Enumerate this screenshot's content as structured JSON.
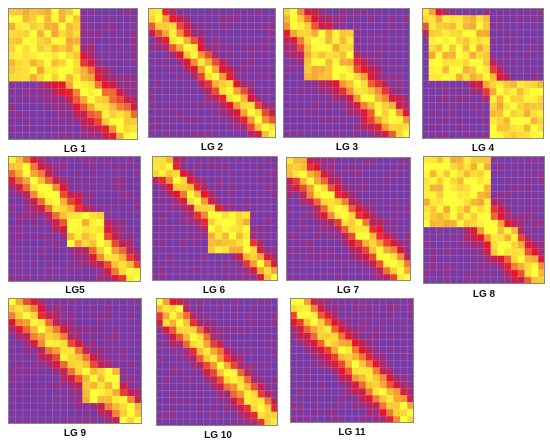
{
  "chart_data": [
    {
      "type": "heatmap",
      "label": "LG 1",
      "blocks": [
        [
          0,
          0.55
        ]
      ],
      "spread": 0.16
    },
    {
      "type": "heatmap",
      "label": "LG 2",
      "blocks": [],
      "spread": 0.1
    },
    {
      "type": "heatmap",
      "label": "LG 3",
      "blocks": [
        [
          0.15,
          0.55
        ]
      ],
      "spread": 0.14
    },
    {
      "type": "heatmap",
      "label": "LG 4",
      "blocks": [
        [
          0.05,
          0.55
        ],
        [
          0.55,
          1
        ]
      ],
      "spread": 0.1
    },
    {
      "type": "heatmap",
      "label": "LG5",
      "blocks": [
        [
          0.45,
          0.75
        ]
      ],
      "spread": 0.12
    },
    {
      "type": "heatmap",
      "label": "LG 6",
      "blocks": [
        [
          0.45,
          0.8
        ],
        [
          0,
          0.18
        ]
      ],
      "spread": 0.09
    },
    {
      "type": "heatmap",
      "label": "LG 7",
      "blocks": [
        [
          0,
          0.15
        ]
      ],
      "spread": 0.12
    },
    {
      "type": "heatmap",
      "label": "LG 8",
      "blocks": [
        [
          0,
          0.55
        ],
        [
          0.55,
          0.8
        ]
      ],
      "spread": 0.14
    },
    {
      "type": "heatmap",
      "label": "LG 9",
      "blocks": [
        [
          0.55,
          0.85
        ],
        [
          0.85,
          1
        ]
      ],
      "spread": 0.12
    },
    {
      "type": "heatmap",
      "label": "LG 10",
      "blocks": [
        [
          0.05,
          0.2
        ]
      ],
      "spread": 0.11
    },
    {
      "type": "heatmap",
      "label": "LG 11",
      "blocks": [],
      "spread": 0.13
    }
  ],
  "colors": {
    "low": "#7a3aa6",
    "mid": "#e8142c",
    "high": "#ffff33"
  }
}
